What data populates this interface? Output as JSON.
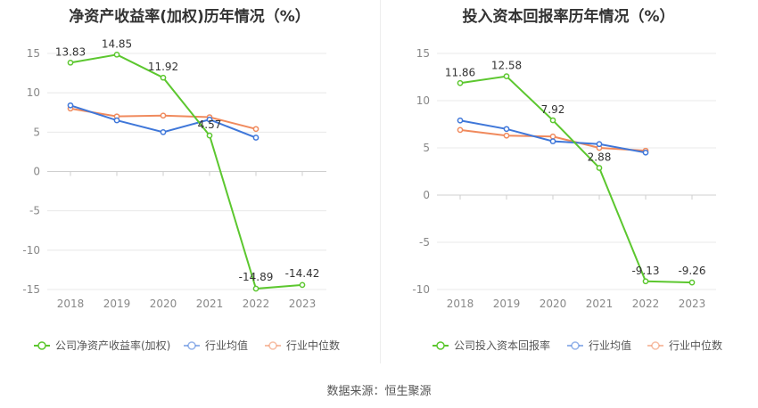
{
  "chart_data": [
    {
      "type": "line",
      "title": "净资产收益率(加权)历年情况（%）",
      "categories": [
        "2018",
        "2019",
        "2020",
        "2021",
        "2022",
        "2023"
      ],
      "yticks": [
        15,
        10,
        5,
        0,
        -5,
        -10,
        -15
      ],
      "ylim": [
        -15,
        15
      ],
      "series": [
        {
          "name": "公司净资产收益率(加权)",
          "color": "#5cc72f",
          "values": [
            13.83,
            14.85,
            11.92,
            4.57,
            -14.89,
            -14.42
          ],
          "labels": [
            "13.83",
            "14.85",
            "11.92",
            "4.57",
            "-14.89",
            "-14.42"
          ]
        },
        {
          "name": "行业均值",
          "color": "#3f77d9",
          "values": [
            8.4,
            6.5,
            5.0,
            6.6,
            4.3,
            null
          ]
        },
        {
          "name": "行业中位数",
          "color": "#f08a5d",
          "values": [
            8.0,
            7.0,
            7.1,
            6.9,
            5.4,
            null
          ]
        }
      ]
    },
    {
      "type": "line",
      "title": "投入资本回报率历年情况（%）",
      "categories": [
        "2018",
        "2019",
        "2020",
        "2021",
        "2022",
        "2023"
      ],
      "yticks": [
        15,
        10,
        5,
        0,
        -5,
        -10
      ],
      "ylim": [
        -10,
        15
      ],
      "series": [
        {
          "name": "公司投入资本回报率",
          "color": "#5cc72f",
          "values": [
            11.86,
            12.58,
            7.92,
            2.88,
            -9.13,
            -9.26
          ],
          "labels": [
            "11.86",
            "12.58",
            "7.92",
            "2.88",
            "-9.13",
            "-9.26"
          ]
        },
        {
          "name": "行业均值",
          "color": "#3f77d9",
          "values": [
            7.9,
            7.0,
            5.7,
            5.4,
            4.5,
            null
          ]
        },
        {
          "name": "行业中位数",
          "color": "#f08a5d",
          "values": [
            6.9,
            6.3,
            6.2,
            5.0,
            4.7,
            null
          ]
        }
      ]
    }
  ],
  "footer": {
    "source": "数据来源：恒生聚源"
  }
}
